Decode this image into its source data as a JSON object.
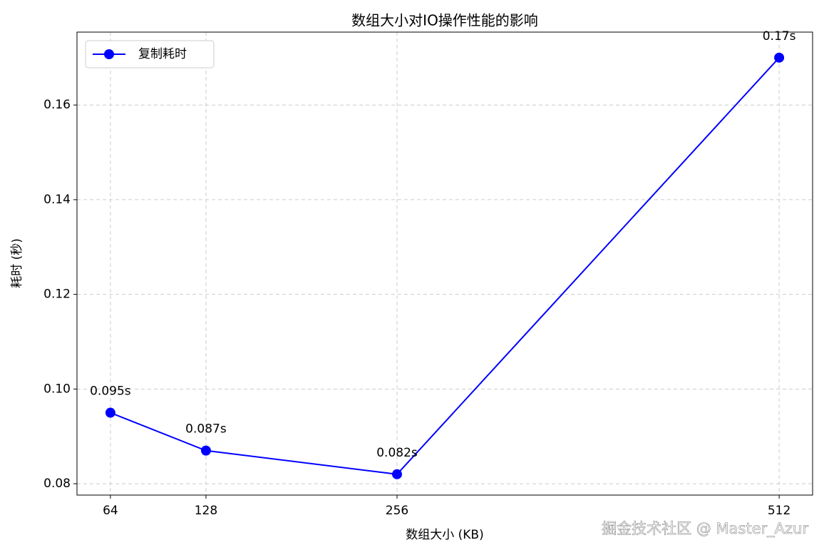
{
  "chart_data": {
    "type": "line",
    "title": "数组大小对IO操作性能的影响",
    "x_label": "数组大小 (KB)",
    "y_label": "耗时 (秒)",
    "x": [
      64,
      128,
      256,
      512
    ],
    "series": [
      {
        "name": "复制耗时",
        "color": "#0000ff",
        "values": [
          0.095,
          0.087,
          0.082,
          0.17
        ],
        "value_labels": [
          "0.095s",
          "0.087s",
          "0.082s",
          "0.17s"
        ]
      }
    ],
    "xlim": [
      41.6,
      534.4
    ],
    "xticks": [
      64,
      128,
      256,
      512
    ],
    "ylim": [
      0.0776,
      0.1754
    ],
    "yticks": [
      0.08,
      {
        "value": 0.1,
        "label": "0.10"
      },
      0.12,
      0.14,
      0.16
    ],
    "grid": true,
    "legend": "upper left",
    "watermark": "掘金技术社区 @ Master_Azur"
  }
}
